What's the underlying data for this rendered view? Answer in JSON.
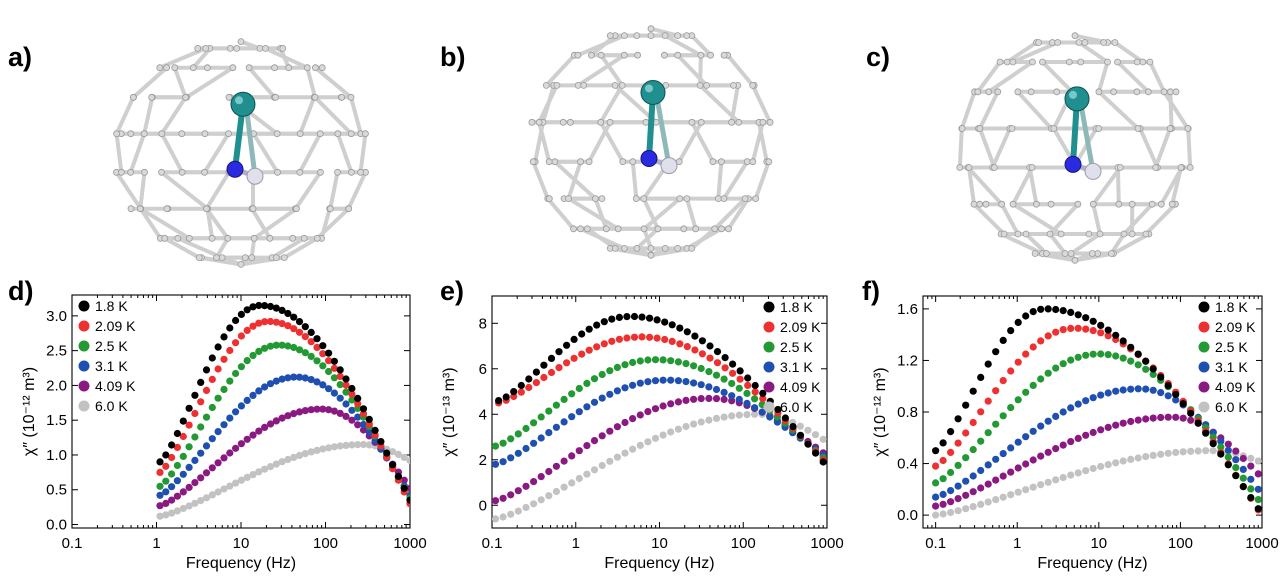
{
  "panels_top": [
    {
      "label": "a)"
    },
    {
      "label": "b)"
    },
    {
      "label": "c)"
    }
  ],
  "colors": {
    "1.8 K": "#000000",
    "2.09 K": "#ee3030",
    "2.5 K": "#229933",
    "3.1 K": "#1f4fb0",
    "4.09 K": "#8a1a82",
    "6.0 K": "#c2c2c2",
    "metal": "#1f8f8f",
    "nitrogen": "#2a2ae0",
    "hydrogen": "#e0e0ec"
  },
  "chart_data": [
    {
      "panel": "d)",
      "type": "scatter",
      "xlabel": "Frequency (Hz)",
      "ylabel": "χ″ (10⁻¹² m³)",
      "xscale": "log",
      "xlim": [
        0.1,
        1000
      ],
      "ylim": [
        -0.05,
        3.3
      ],
      "xticks": [
        0.1,
        1,
        10,
        100,
        1000
      ],
      "xtick_labels": [
        "0.1",
        "1",
        "10",
        "100",
        "1000"
      ],
      "yticks": [
        0.0,
        0.5,
        1.0,
        1.5,
        2.0,
        2.5,
        3.0
      ],
      "ytick_labels": [
        "0.0",
        "0.5",
        "1.0",
        "1.5",
        "2.0",
        "2.5",
        "3.0"
      ],
      "legend_position": "top-left",
      "series": [
        {
          "name": "1.8 K",
          "fmin": 1.1,
          "fmax": 1000,
          "peak_f": 17,
          "peak_y": 3.15,
          "low_y": 0.9,
          "high_y": 0.35
        },
        {
          "name": "2.09 K",
          "fmin": 1.1,
          "fmax": 1000,
          "peak_f": 21,
          "peak_y": 2.92,
          "low_y": 0.75,
          "high_y": 0.3
        },
        {
          "name": "2.5 K",
          "fmin": 1.1,
          "fmax": 1000,
          "peak_f": 28,
          "peak_y": 2.58,
          "low_y": 0.55,
          "high_y": 0.38
        },
        {
          "name": "3.1 K",
          "fmin": 1.1,
          "fmax": 1000,
          "peak_f": 45,
          "peak_y": 2.12,
          "low_y": 0.42,
          "high_y": 0.42
        },
        {
          "name": "4.09 K",
          "fmin": 1.1,
          "fmax": 1000,
          "peak_f": 90,
          "peak_y": 1.66,
          "low_y": 0.27,
          "high_y": 0.52
        },
        {
          "name": "6.0 K",
          "fmin": 1.1,
          "fmax": 1000,
          "peak_f": 280,
          "peak_y": 1.15,
          "low_y": 0.12,
          "high_y": 0.92
        }
      ]
    },
    {
      "panel": "e)",
      "type": "scatter",
      "xlabel": "Frequency (Hz)",
      "ylabel": "χ″ (10⁻¹³ m³)",
      "xscale": "log",
      "xlim": [
        0.1,
        1000
      ],
      "ylim": [
        -1,
        9.2
      ],
      "xticks": [
        0.1,
        1,
        10,
        100,
        1000
      ],
      "xtick_labels": [
        "0.1",
        "1",
        "10",
        "100",
        "1000"
      ],
      "yticks": [
        0,
        2,
        4,
        6,
        8
      ],
      "ytick_labels": [
        "0",
        "2",
        "4",
        "6",
        "8"
      ],
      "legend_position": "top-right",
      "series": [
        {
          "name": "1.8 K",
          "fmin": 0.12,
          "fmax": 900,
          "peak_f": 4.5,
          "peak_y": 8.3,
          "low_y": 4.6,
          "high_y": 1.9
        },
        {
          "name": "2.09 K",
          "fmin": 0.12,
          "fmax": 900,
          "peak_f": 6,
          "peak_y": 7.4,
          "low_y": 4.5,
          "high_y": 2.0
        },
        {
          "name": "2.5 K",
          "fmin": 0.11,
          "fmax": 900,
          "peak_f": 9,
          "peak_y": 6.4,
          "low_y": 2.6,
          "high_y": 2.1
        },
        {
          "name": "3.1 K",
          "fmin": 0.11,
          "fmax": 900,
          "peak_f": 12,
          "peak_y": 5.5,
          "low_y": 1.8,
          "high_y": 2.2
        },
        {
          "name": "4.09 K",
          "fmin": 0.11,
          "fmax": 900,
          "peak_f": 40,
          "peak_y": 4.7,
          "low_y": 0.2,
          "high_y": 2.3
        },
        {
          "name": "6.0 K",
          "fmin": 0.11,
          "fmax": 900,
          "peak_f": 150,
          "peak_y": 4.0,
          "low_y": -0.6,
          "high_y": 2.9
        }
      ]
    },
    {
      "panel": "f)",
      "type": "scatter",
      "xlabel": "Frequency (Hz)",
      "ylabel": "χ″ (10⁻¹² m³)",
      "xscale": "log",
      "xlim": [
        0.07,
        1000
      ],
      "ylim": [
        -0.1,
        1.7
      ],
      "xticks": [
        0.1,
        1,
        10,
        100,
        1000
      ],
      "xtick_labels": [
        "0.1",
        "1",
        "10",
        "100",
        "1000"
      ],
      "yticks": [
        0.0,
        0.4,
        0.8,
        1.2,
        1.6
      ],
      "ytick_labels": [
        "0.0",
        "0.4",
        "0.8",
        "1.2",
        "1.6"
      ],
      "legend_position": "top-right",
      "series": [
        {
          "name": "1.8 K",
          "fmin": 0.1,
          "fmax": 900,
          "peak_f": 2.2,
          "peak_y": 1.6,
          "low_y": 0.5,
          "high_y": 0.05
        },
        {
          "name": "2.09 K",
          "fmin": 0.1,
          "fmax": 900,
          "peak_f": 5,
          "peak_y": 1.45,
          "low_y": 0.38,
          "high_y": 0.04
        },
        {
          "name": "2.5 K",
          "fmin": 0.1,
          "fmax": 900,
          "peak_f": 10,
          "peak_y": 1.25,
          "low_y": 0.25,
          "high_y": 0.12
        },
        {
          "name": "3.1 K",
          "fmin": 0.1,
          "fmax": 900,
          "peak_f": 32,
          "peak_y": 0.98,
          "low_y": 0.14,
          "high_y": 0.2
        },
        {
          "name": "4.09 K",
          "fmin": 0.1,
          "fmax": 900,
          "peak_f": 80,
          "peak_y": 0.76,
          "low_y": 0.07,
          "high_y": 0.32
        },
        {
          "name": "6.0 K",
          "fmin": 0.1,
          "fmax": 900,
          "peak_f": 250,
          "peak_y": 0.5,
          "low_y": 0.0,
          "high_y": 0.42
        }
      ]
    }
  ]
}
